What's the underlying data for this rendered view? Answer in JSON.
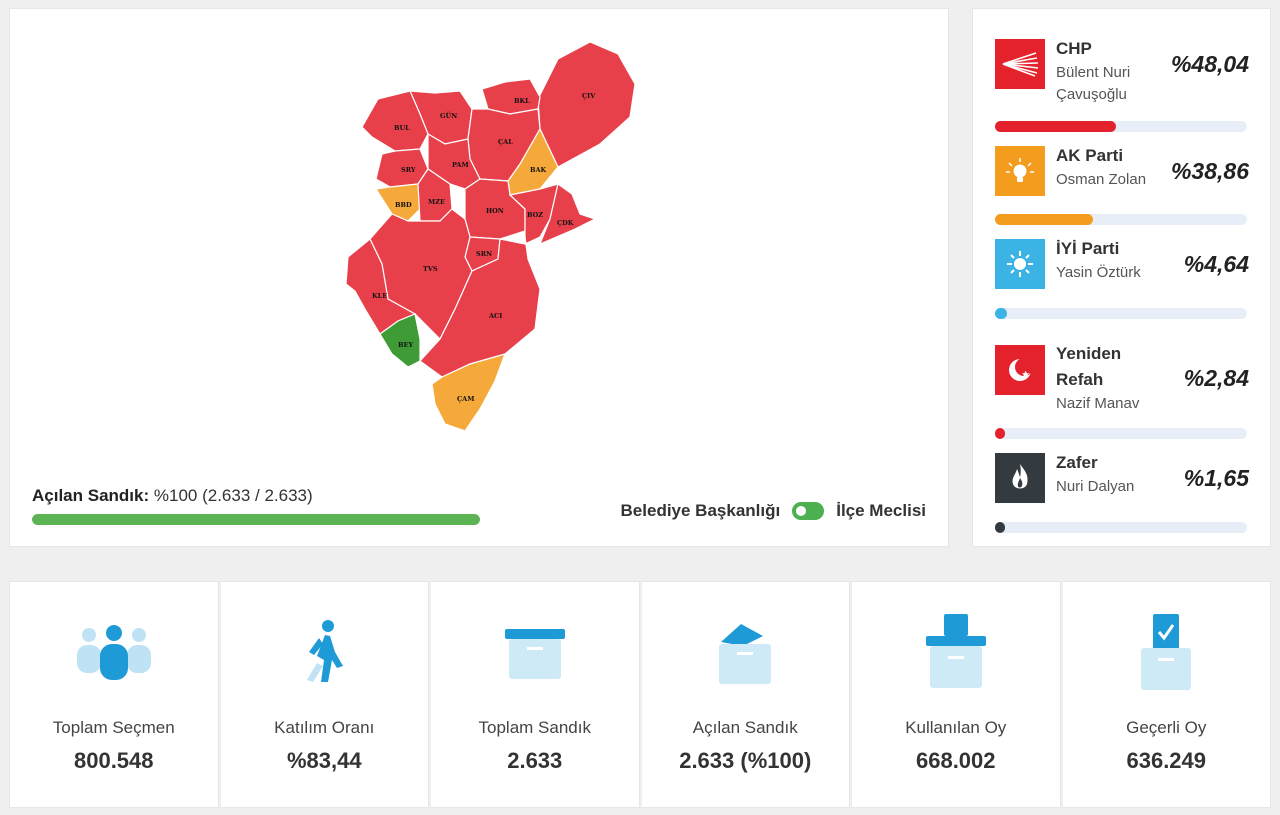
{
  "map": {
    "district_labels": [
      "ÇIV",
      "BKL",
      "GÜN",
      "BUL",
      "ÇAL",
      "PAM",
      "SRY",
      "BAK",
      "BBD",
      "MZE",
      "HON",
      "BOZ",
      "ÇDK",
      "SRN",
      "TVS",
      "KLE",
      "ACI",
      "BEY",
      "ÇAM"
    ],
    "colors": {
      "red": "#e8404a",
      "orange": "#f6a93b",
      "green": "#3f9b35"
    }
  },
  "progress": {
    "label": "Açılan Sandık:",
    "value_text": "%100 (2.633 / 2.633)",
    "percent": 100
  },
  "toggle": {
    "left_label": "Belediye Başkanlığı",
    "right_label": "İlçe Meclisi",
    "state": "on"
  },
  "parties": [
    {
      "name": "CHP",
      "candidate": "Bülent Nuri Çavuşoğlu",
      "percent_text": "%48,04",
      "percent": 48.04,
      "color": "#e3222b",
      "icon": "chp-six-arrows-icon"
    },
    {
      "name": "AK Parti",
      "candidate": "Osman Zolan",
      "percent_text": "%38,86",
      "percent": 38.86,
      "color": "#f39c1e",
      "icon": "akp-lightbulb-icon"
    },
    {
      "name": "İYİ Parti",
      "candidate": "Yasin Öztürk",
      "percent_text": "%4,64",
      "percent": 4.64,
      "color": "#3bb3e4",
      "icon": "iyi-sun-icon"
    },
    {
      "name": "Yeniden Refah",
      "candidate": "Nazif Manav",
      "percent_text": "%2,84",
      "percent": 2.84,
      "color": "#e3222b",
      "icon": "yrp-crescent-icon"
    },
    {
      "name": "Zafer",
      "candidate": "Nuri Dalyan",
      "percent_text": "%1,65",
      "percent": 1.65,
      "color": "#333a40",
      "icon": "zafer-flame-icon"
    }
  ],
  "stats": [
    {
      "label": "Toplam Seçmen",
      "value": "800.548",
      "icon": "voters-group-icon"
    },
    {
      "label": "Katılım Oranı",
      "value": "%83,44",
      "icon": "walking-person-icon"
    },
    {
      "label": "Toplam Sandık",
      "value": "2.633",
      "icon": "ballot-box-icon"
    },
    {
      "label": "Açılan Sandık",
      "value": "2.633 (%100)",
      "icon": "opened-ballot-box-icon"
    },
    {
      "label": "Kullanılan Oy",
      "value": "668.002",
      "icon": "ballot-cast-icon"
    },
    {
      "label": "Geçerli Oy",
      "value": "636.249",
      "icon": "valid-vote-check-icon"
    }
  ]
}
